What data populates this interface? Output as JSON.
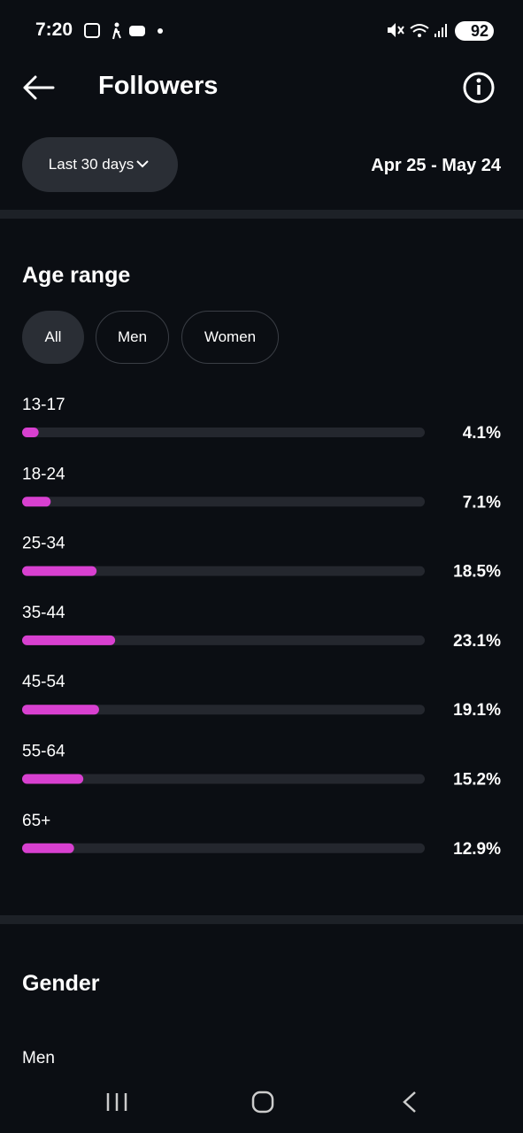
{
  "status_bar": {
    "time": "7:20",
    "battery": "92"
  },
  "header": {
    "title": "Followers"
  },
  "filter": {
    "period": "Last 30 days",
    "date_range": "Apr 25 - May 24"
  },
  "age_filters": [
    "All",
    "Men",
    "Women"
  ],
  "chart_data": {
    "type": "bar",
    "orientation": "horizontal",
    "title": "Age range",
    "categories": [
      "13-17",
      "18-24",
      "25-34",
      "35-44",
      "45-54",
      "55-64",
      "65+"
    ],
    "values": [
      4.1,
      7.1,
      18.5,
      23.1,
      19.1,
      15.2,
      12.9
    ],
    "value_labels": [
      "4.1%",
      "7.1%",
      "18.5%",
      "23.1%",
      "19.1%",
      "15.2%",
      "12.9%"
    ],
    "color": "#d840d0",
    "xlim": [
      0,
      100
    ]
  },
  "gender": {
    "title": "Gender",
    "first_label": "Men"
  }
}
